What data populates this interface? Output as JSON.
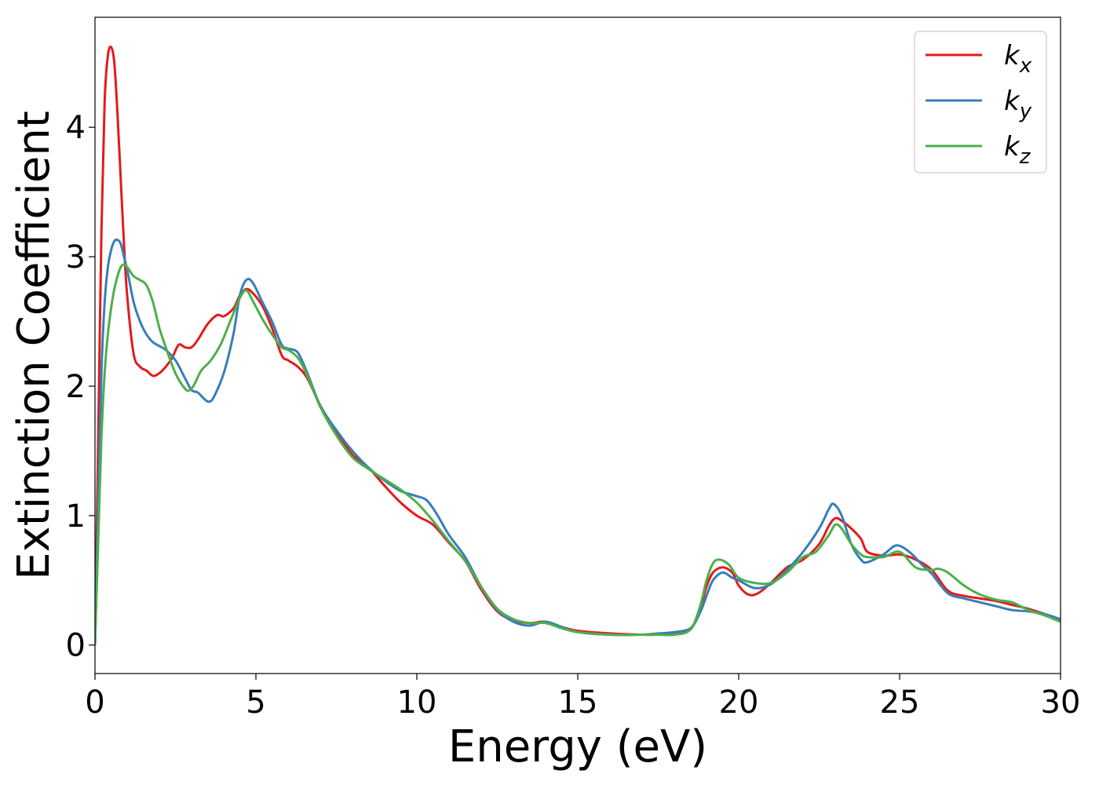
{
  "chart_data": {
    "type": "line",
    "xlabel": "Energy (eV)",
    "ylabel": "Extinction Coefficient",
    "xlim": [
      0,
      30
    ],
    "ylim": [
      -0.22,
      4.85
    ],
    "x_ticks": [
      0,
      5,
      10,
      15,
      20,
      25,
      30
    ],
    "y_ticks": [
      0,
      1,
      2,
      3,
      4
    ],
    "grid": false,
    "legend_position": "top-right",
    "series": [
      {
        "name": "k",
        "subscript": "x",
        "color": "#e41a1c",
        "x": [
          0,
          0.1,
          0.2,
          0.3,
          0.4,
          0.5,
          0.6,
          0.7,
          0.8,
          0.9,
          1.0,
          1.2,
          1.4,
          1.6,
          1.8,
          2.0,
          2.2,
          2.4,
          2.6,
          2.8,
          3.0,
          3.2,
          3.5,
          3.8,
          4.0,
          4.3,
          4.5,
          4.7,
          4.9,
          5.2,
          5.5,
          5.8,
          6.0,
          6.3,
          6.6,
          7.0,
          7.5,
          8.0,
          8.5,
          9.0,
          9.5,
          10.0,
          10.5,
          11.0,
          11.5,
          12.0,
          12.5,
          13.0,
          13.5,
          14.0,
          14.5,
          15.0,
          16.0,
          17.0,
          17.5,
          18.0,
          18.5,
          18.8,
          19.0,
          19.2,
          19.5,
          19.8,
          20.0,
          20.3,
          20.6,
          21.0,
          21.5,
          22.0,
          22.5,
          22.8,
          23.0,
          23.2,
          23.5,
          23.8,
          24.0,
          24.5,
          25.0,
          25.5,
          26.0,
          26.5,
          27.0,
          27.5,
          28.0,
          28.5,
          29.0,
          29.5,
          30.0
        ],
        "values": [
          0.0,
          1.6,
          3.2,
          4.2,
          4.55,
          4.62,
          4.5,
          4.1,
          3.6,
          3.1,
          2.7,
          2.25,
          2.15,
          2.12,
          2.08,
          2.1,
          2.15,
          2.22,
          2.32,
          2.3,
          2.3,
          2.36,
          2.48,
          2.55,
          2.54,
          2.6,
          2.7,
          2.75,
          2.72,
          2.62,
          2.45,
          2.24,
          2.2,
          2.15,
          2.06,
          1.85,
          1.65,
          1.47,
          1.37,
          1.23,
          1.1,
          1.0,
          0.93,
          0.79,
          0.65,
          0.43,
          0.26,
          0.19,
          0.17,
          0.18,
          0.14,
          0.11,
          0.09,
          0.08,
          0.08,
          0.09,
          0.12,
          0.28,
          0.45,
          0.56,
          0.6,
          0.56,
          0.46,
          0.39,
          0.4,
          0.48,
          0.6,
          0.66,
          0.78,
          0.92,
          0.98,
          0.96,
          0.9,
          0.82,
          0.72,
          0.69,
          0.7,
          0.66,
          0.58,
          0.42,
          0.38,
          0.36,
          0.34,
          0.31,
          0.28,
          0.24,
          0.19
        ]
      },
      {
        "name": "k",
        "subscript": "y",
        "color": "#377eb8",
        "x": [
          0,
          0.1,
          0.2,
          0.3,
          0.4,
          0.5,
          0.6,
          0.7,
          0.8,
          0.9,
          1.0,
          1.2,
          1.4,
          1.6,
          1.8,
          2.0,
          2.2,
          2.5,
          2.8,
          3.0,
          3.2,
          3.4,
          3.55,
          3.7,
          4.0,
          4.3,
          4.5,
          4.7,
          4.9,
          5.2,
          5.5,
          5.8,
          6.0,
          6.3,
          6.6,
          7.0,
          7.5,
          8.0,
          8.5,
          9.0,
          9.5,
          10.0,
          10.3,
          10.6,
          11.0,
          11.5,
          12.0,
          12.5,
          13.0,
          13.5,
          14.0,
          14.5,
          15.0,
          16.0,
          17.0,
          17.5,
          18.0,
          18.5,
          18.8,
          19.0,
          19.2,
          19.5,
          19.8,
          20.0,
          20.5,
          21.0,
          21.5,
          22.0,
          22.5,
          22.8,
          22.95,
          23.2,
          23.5,
          23.8,
          24.0,
          24.5,
          24.9,
          25.3,
          25.7,
          26.0,
          26.5,
          27.0,
          27.5,
          28.0,
          28.5,
          29.0,
          29.5,
          30.0
        ],
        "values": [
          0.0,
          1.1,
          2.1,
          2.65,
          2.92,
          3.05,
          3.12,
          3.13,
          3.1,
          3.0,
          2.9,
          2.65,
          2.5,
          2.4,
          2.34,
          2.31,
          2.28,
          2.2,
          2.06,
          1.97,
          1.95,
          1.9,
          1.88,
          1.92,
          2.1,
          2.4,
          2.7,
          2.82,
          2.8,
          2.65,
          2.5,
          2.32,
          2.29,
          2.26,
          2.1,
          1.85,
          1.66,
          1.5,
          1.37,
          1.27,
          1.19,
          1.15,
          1.12,
          1.02,
          0.85,
          0.68,
          0.45,
          0.27,
          0.18,
          0.15,
          0.18,
          0.14,
          0.1,
          0.08,
          0.08,
          0.09,
          0.1,
          0.13,
          0.25,
          0.38,
          0.5,
          0.56,
          0.52,
          0.5,
          0.44,
          0.47,
          0.58,
          0.72,
          0.9,
          1.05,
          1.09,
          1.0,
          0.78,
          0.66,
          0.64,
          0.7,
          0.77,
          0.72,
          0.62,
          0.55,
          0.4,
          0.36,
          0.33,
          0.3,
          0.27,
          0.26,
          0.24,
          0.2
        ]
      },
      {
        "name": "k",
        "subscript": "z",
        "color": "#4daf4a",
        "x": [
          0,
          0.1,
          0.2,
          0.3,
          0.4,
          0.5,
          0.6,
          0.7,
          0.8,
          0.9,
          1.0,
          1.2,
          1.4,
          1.6,
          1.8,
          2.0,
          2.2,
          2.5,
          2.8,
          2.95,
          3.1,
          3.3,
          3.6,
          3.9,
          4.2,
          4.5,
          4.7,
          4.9,
          5.2,
          5.5,
          5.8,
          6.0,
          6.3,
          6.6,
          7.0,
          7.5,
          8.0,
          8.5,
          9.0,
          9.5,
          10.0,
          10.5,
          11.0,
          11.5,
          12.0,
          12.5,
          13.0,
          13.5,
          14.0,
          14.5,
          15.0,
          16.0,
          17.0,
          17.5,
          18.0,
          18.5,
          18.8,
          19.0,
          19.2,
          19.4,
          19.7,
          20.0,
          20.5,
          21.0,
          21.5,
          22.0,
          22.4,
          22.8,
          23.0,
          23.2,
          23.5,
          23.8,
          24.0,
          24.5,
          25.0,
          25.5,
          26.0,
          26.2,
          26.5,
          27.0,
          27.5,
          28.0,
          28.5,
          29.0,
          29.5,
          30.0
        ],
        "values": [
          0.0,
          0.8,
          1.6,
          2.1,
          2.4,
          2.6,
          2.75,
          2.85,
          2.92,
          2.94,
          2.92,
          2.85,
          2.82,
          2.78,
          2.65,
          2.45,
          2.3,
          2.1,
          1.98,
          1.97,
          2.02,
          2.12,
          2.2,
          2.32,
          2.5,
          2.68,
          2.74,
          2.66,
          2.52,
          2.4,
          2.3,
          2.28,
          2.22,
          2.08,
          1.84,
          1.62,
          1.45,
          1.36,
          1.28,
          1.2,
          1.1,
          0.96,
          0.8,
          0.65,
          0.45,
          0.28,
          0.2,
          0.17,
          0.17,
          0.13,
          0.1,
          0.08,
          0.08,
          0.08,
          0.08,
          0.12,
          0.3,
          0.5,
          0.63,
          0.66,
          0.62,
          0.52,
          0.48,
          0.48,
          0.56,
          0.68,
          0.72,
          0.85,
          0.93,
          0.9,
          0.78,
          0.7,
          0.68,
          0.68,
          0.72,
          0.6,
          0.58,
          0.59,
          0.56,
          0.46,
          0.39,
          0.35,
          0.33,
          0.27,
          0.23,
          0.18
        ]
      }
    ]
  }
}
